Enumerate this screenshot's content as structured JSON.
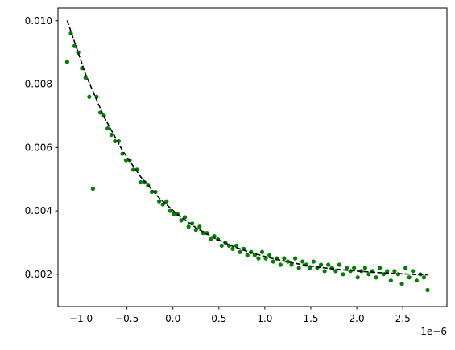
{
  "chart_data": {
    "type": "scatter",
    "x_offset_text": "1e−6",
    "xlim": [
      -1.25,
      2.98
    ],
    "ylim": [
      0.00098,
      0.0104
    ],
    "xticks": [
      {
        "value": -1.0,
        "label": "−1.0"
      },
      {
        "value": -0.5,
        "label": "−0.5"
      },
      {
        "value": 0.0,
        "label": "0.0"
      },
      0.5,
      {
        "value": 1.0,
        "label": "1.0"
      },
      1.5,
      {
        "value": 2.0,
        "label": "2.0"
      },
      2.5
    ],
    "yticks": [
      0.002,
      0.004,
      0.006,
      0.008,
      {
        "value": 0.01,
        "label": "0.010"
      }
    ],
    "grid": false,
    "series": [
      {
        "type": "scatter",
        "color": "#008000",
        "x": [
          -1.15,
          -1.11,
          -1.07,
          -1.03,
          -0.99,
          -0.95,
          -0.91,
          -0.87,
          -0.83,
          -0.79,
          -0.75,
          -0.71,
          -0.67,
          -0.63,
          -0.59,
          -0.55,
          -0.51,
          -0.47,
          -0.43,
          -0.39,
          -0.35,
          -0.31,
          -0.27,
          -0.23,
          -0.19,
          -0.15,
          -0.11,
          -0.07,
          -0.03,
          0.01,
          0.05,
          0.09,
          0.13,
          0.17,
          0.21,
          0.25,
          0.29,
          0.33,
          0.37,
          0.41,
          0.45,
          0.49,
          0.53,
          0.57,
          0.61,
          0.65,
          0.69,
          0.73,
          0.77,
          0.81,
          0.85,
          0.89,
          0.93,
          0.97,
          1.01,
          1.05,
          1.09,
          1.13,
          1.17,
          1.21,
          1.25,
          1.29,
          1.33,
          1.37,
          1.41,
          1.45,
          1.49,
          1.53,
          1.57,
          1.61,
          1.65,
          1.69,
          1.73,
          1.77,
          1.81,
          1.85,
          1.89,
          1.93,
          1.97,
          2.01,
          2.05,
          2.09,
          2.13,
          2.17,
          2.21,
          2.25,
          2.29,
          2.33,
          2.37,
          2.41,
          2.45,
          2.49,
          2.53,
          2.57,
          2.61,
          2.65,
          2.69,
          2.73,
          2.77
        ],
        "values": [
          0.0087,
          0.0096,
          0.0092,
          0.009,
          0.0085,
          0.0082,
          0.0076,
          0.0047,
          0.0076,
          0.0071,
          0.007,
          0.0066,
          0.0064,
          0.0062,
          0.0062,
          0.0058,
          0.0056,
          0.0056,
          0.0053,
          0.0053,
          0.0049,
          0.0049,
          0.0048,
          0.0046,
          0.0046,
          0.0043,
          0.0042,
          0.0043,
          0.004,
          0.0039,
          0.0039,
          0.0037,
          0.0038,
          0.0035,
          0.0036,
          0.0034,
          0.0035,
          0.0033,
          0.0033,
          0.0031,
          0.0032,
          0.0031,
          0.0029,
          0.003,
          0.0029,
          0.0028,
          0.0029,
          0.0027,
          0.0028,
          0.0026,
          0.0027,
          0.0026,
          0.0025,
          0.0027,
          0.0025,
          0.0026,
          0.0024,
          0.0025,
          0.0023,
          0.0025,
          0.0024,
          0.0023,
          0.0025,
          0.0022,
          0.0024,
          0.0023,
          0.0022,
          0.0024,
          0.0022,
          0.0023,
          0.0021,
          0.0023,
          0.0022,
          0.0021,
          0.0023,
          0.002,
          0.0022,
          0.0021,
          0.0022,
          0.0019,
          0.0021,
          0.0022,
          0.002,
          0.0021,
          0.0019,
          0.0022,
          0.002,
          0.0021,
          0.0018,
          0.0021,
          0.002,
          0.0017,
          0.0022,
          0.0019,
          0.0021,
          0.0018,
          0.002,
          0.0019,
          0.0015
        ]
      },
      {
        "type": "line",
        "color": "#000000",
        "dashed": true,
        "x": [
          -1.15,
          -0.95,
          -0.75,
          -0.55,
          -0.35,
          -0.15,
          0.05,
          0.25,
          0.45,
          0.65,
          0.85,
          1.05,
          1.25,
          1.45,
          1.65,
          1.85,
          2.05,
          2.25,
          2.45,
          2.65,
          2.77
        ],
        "values": [
          0.01001,
          0.00831,
          0.00697,
          0.00591,
          0.00507,
          0.00441,
          0.00388,
          0.00347,
          0.00314,
          0.00288,
          0.00268,
          0.00252,
          0.00239,
          0.00228,
          0.0022,
          0.00214,
          0.00209,
          0.00205,
          0.00202,
          0.00199,
          0.00198
        ]
      }
    ]
  }
}
